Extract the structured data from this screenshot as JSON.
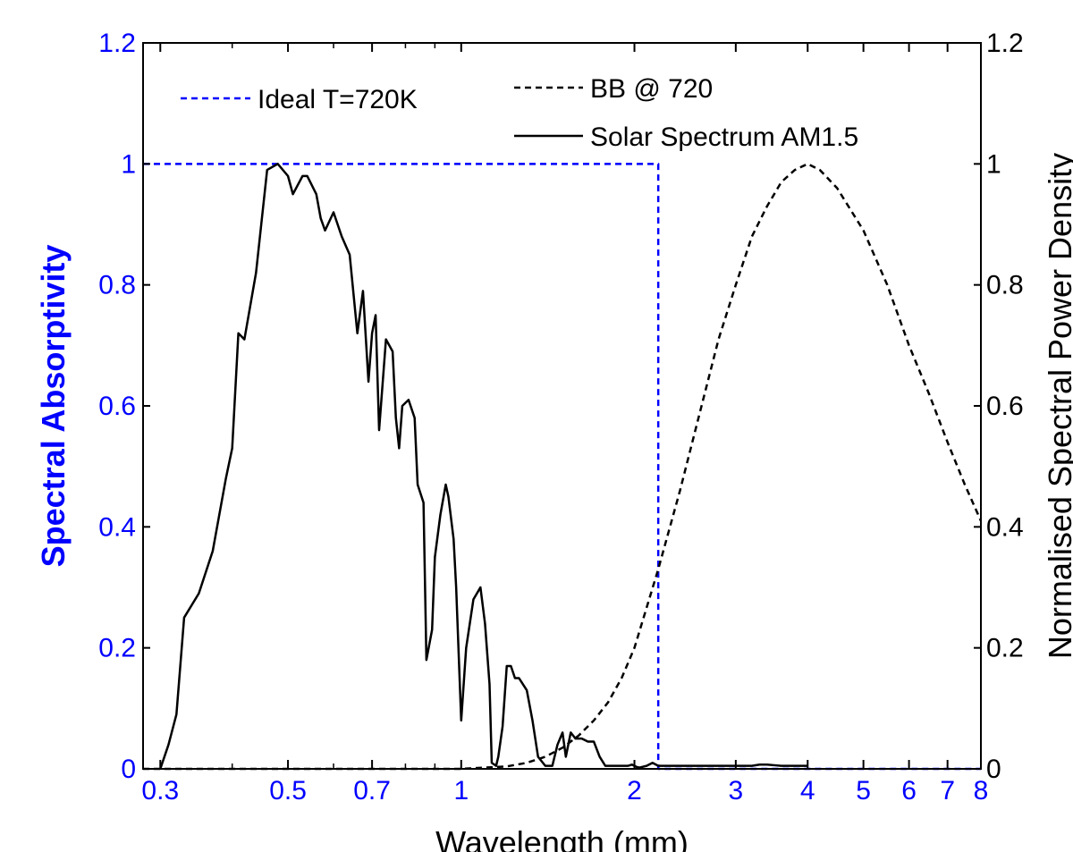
{
  "chart_data": {
    "type": "line",
    "xlabel": "Wavelength (mm)",
    "ylabel_left": "Spectral Absorptivity",
    "ylabel_right": "Normalised Spectral Power Density",
    "x_scale": "log",
    "xlim": [
      0.28,
      8
    ],
    "ylim_left": [
      0,
      1.2
    ],
    "ylim_right": [
      0,
      1.2
    ],
    "x_ticks": [
      0.3,
      0.5,
      0.7,
      1,
      2,
      3,
      4,
      5,
      6,
      7,
      8
    ],
    "x_tick_labels": [
      "0.3",
      "0.5",
      "0.7",
      "1",
      "2",
      "3",
      "4",
      "5",
      "6",
      "7",
      "8"
    ],
    "y_ticks_left": [
      0,
      0.2,
      0.4,
      0.6,
      0.8,
      1,
      1.2
    ],
    "y_tick_labels_left": [
      "0",
      "0.2",
      "0.4",
      "0.6",
      "0.8",
      "1",
      "1.2"
    ],
    "y_ticks_right": [
      0,
      0.2,
      0.4,
      0.6,
      0.8,
      1,
      1.2
    ],
    "y_tick_labels_right": [
      "0",
      "0.2",
      "0.4",
      "0.6",
      "0.8",
      "1",
      "1.2"
    ],
    "legend_placement": "top",
    "colors": {
      "left_axis": "#0000ff",
      "right_axis": "#000000",
      "ideal": "#0000ff",
      "bb": "#000000",
      "solar": "#000000"
    },
    "series": [
      {
        "name": "Ideal T=720K",
        "style": "dashed",
        "axis": "left",
        "x": [
          0.28,
          2.2,
          2.2,
          8
        ],
        "y": [
          1,
          1,
          0,
          0
        ]
      },
      {
        "name": "BB @ 720",
        "style": "dashed",
        "axis": "right",
        "x": [
          0.28,
          1.0,
          1.2,
          1.3,
          1.4,
          1.5,
          1.6,
          1.7,
          1.8,
          1.9,
          2.0,
          2.2,
          2.4,
          2.6,
          2.8,
          3.0,
          3.2,
          3.4,
          3.6,
          3.8,
          4.0,
          4.2,
          4.5,
          5.0,
          5.5,
          6.0,
          6.5,
          7.0,
          7.5,
          8.0
        ],
        "y": [
          0,
          0,
          0.004,
          0.01,
          0.02,
          0.035,
          0.055,
          0.08,
          0.11,
          0.15,
          0.2,
          0.33,
          0.46,
          0.59,
          0.71,
          0.8,
          0.88,
          0.93,
          0.97,
          0.99,
          1.0,
          0.99,
          0.96,
          0.89,
          0.8,
          0.7,
          0.62,
          0.54,
          0.47,
          0.41
        ]
      },
      {
        "name": "Solar Spectrum AM1.5",
        "style": "solid",
        "axis": "right",
        "x": [
          0.3,
          0.31,
          0.32,
          0.33,
          0.35,
          0.37,
          0.39,
          0.4,
          0.41,
          0.42,
          0.44,
          0.46,
          0.48,
          0.5,
          0.51,
          0.53,
          0.54,
          0.56,
          0.57,
          0.58,
          0.6,
          0.62,
          0.64,
          0.66,
          0.675,
          0.69,
          0.7,
          0.71,
          0.72,
          0.74,
          0.76,
          0.77,
          0.78,
          0.79,
          0.81,
          0.83,
          0.84,
          0.86,
          0.87,
          0.89,
          0.9,
          0.92,
          0.94,
          0.95,
          0.97,
          0.98,
          1.0,
          1.02,
          1.05,
          1.08,
          1.1,
          1.12,
          1.13,
          1.15,
          1.16,
          1.18,
          1.2,
          1.22,
          1.24,
          1.26,
          1.3,
          1.33,
          1.36,
          1.4,
          1.44,
          1.47,
          1.5,
          1.52,
          1.55,
          1.58,
          1.62,
          1.66,
          1.7,
          1.74,
          1.78,
          1.82,
          1.86,
          1.9,
          1.95,
          1.98,
          2.0,
          2.02,
          2.04,
          2.06,
          2.1,
          2.15,
          2.2,
          2.25,
          2.3,
          2.35,
          2.4,
          2.45,
          2.5,
          2.6,
          2.8,
          3.0,
          3.1,
          3.2,
          3.3,
          3.4,
          3.5,
          3.6,
          3.8,
          4.0
        ],
        "y": [
          0,
          0.04,
          0.09,
          0.25,
          0.29,
          0.36,
          0.48,
          0.53,
          0.72,
          0.71,
          0.82,
          0.99,
          1.0,
          0.98,
          0.95,
          0.98,
          0.98,
          0.95,
          0.91,
          0.89,
          0.92,
          0.88,
          0.85,
          0.72,
          0.79,
          0.64,
          0.72,
          0.75,
          0.56,
          0.71,
          0.69,
          0.58,
          0.53,
          0.6,
          0.61,
          0.58,
          0.47,
          0.44,
          0.18,
          0.23,
          0.35,
          0.42,
          0.47,
          0.45,
          0.38,
          0.3,
          0.08,
          0.2,
          0.28,
          0.3,
          0.24,
          0.14,
          0.01,
          0.005,
          0.02,
          0.07,
          0.17,
          0.17,
          0.15,
          0.15,
          0.13,
          0.08,
          0.02,
          0.005,
          0.005,
          0.04,
          0.06,
          0.02,
          0.06,
          0.05,
          0.05,
          0.045,
          0.045,
          0.02,
          0.005,
          0.005,
          0.005,
          0.005,
          0.005,
          0.007,
          0.005,
          0.003,
          0.002,
          0.003,
          0.005,
          0.01,
          0.005,
          0.005,
          0.005,
          0.005,
          0.005,
          0.005,
          0.005,
          0.005,
          0.005,
          0.005,
          0.005,
          0.005,
          0.007,
          0.007,
          0.006,
          0.005,
          0.005,
          0.005
        ]
      }
    ]
  }
}
